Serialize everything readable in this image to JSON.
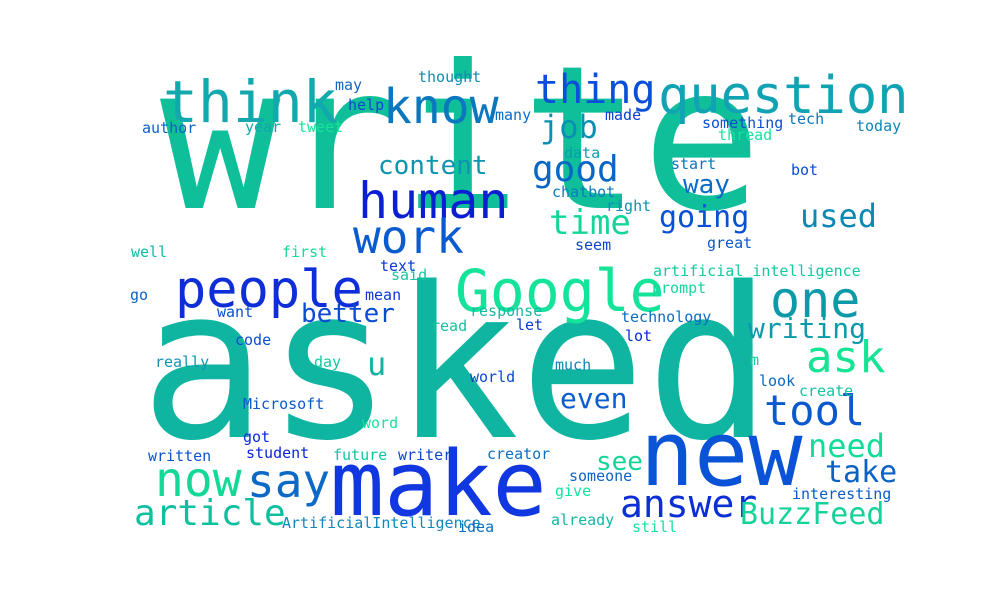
{
  "words": [
    {
      "text": "write",
      "color": "#0fbf9a"
    },
    {
      "text": "asked",
      "color": "#0fb5a0"
    },
    {
      "text": "make",
      "color": "#1037e0"
    },
    {
      "text": "new",
      "color": "#0a52d6"
    },
    {
      "text": "question",
      "color": "#11a3b3"
    },
    {
      "text": "think",
      "color": "#12a8ad"
    },
    {
      "text": "know",
      "color": "#0a77be"
    },
    {
      "text": "Google",
      "color": "#14e39a"
    },
    {
      "text": "people",
      "color": "#0d2ed9"
    },
    {
      "text": "human",
      "color": "#0a1fd3"
    },
    {
      "text": "work",
      "color": "#0a5bd0"
    },
    {
      "text": "one",
      "color": "#0c9aa8"
    },
    {
      "text": "thing",
      "color": "#0a4fd9"
    },
    {
      "text": "tool",
      "color": "#0a59cf"
    },
    {
      "text": "ask",
      "color": "#14e494"
    },
    {
      "text": "now",
      "color": "#14d996"
    },
    {
      "text": "say",
      "color": "#0a6ac6"
    },
    {
      "text": "article",
      "color": "#0fc0a0"
    },
    {
      "text": "answer",
      "color": "#0a2fd5"
    },
    {
      "text": "BuzzFeed",
      "color": "#14d39a"
    },
    {
      "text": "good",
      "color": "#0a66c5"
    },
    {
      "text": "job",
      "color": "#0b8fb2"
    },
    {
      "text": "time",
      "color": "#14d59a"
    },
    {
      "text": "used",
      "color": "#0d87b4"
    },
    {
      "text": "going",
      "color": "#0a50d2"
    },
    {
      "text": "content",
      "color": "#0c94b0"
    },
    {
      "text": "way",
      "color": "#0a6cc6"
    },
    {
      "text": "writing",
      "color": "#0a9aab"
    },
    {
      "text": "better",
      "color": "#0a4cd1"
    },
    {
      "text": "need",
      "color": "#14dc98"
    },
    {
      "text": "take",
      "color": "#0a62c5"
    },
    {
      "text": "see",
      "color": "#14d49a"
    },
    {
      "text": "even",
      "color": "#0a5ccf"
    },
    {
      "text": "u",
      "color": "#12b3a3"
    },
    {
      "text": "artificial intelligence",
      "color": "#13c9a0"
    },
    {
      "text": "technology",
      "color": "#0b6bc4"
    },
    {
      "text": "prompt",
      "color": "#14d69c"
    },
    {
      "text": "may",
      "color": "#1268c4"
    },
    {
      "text": "thought",
      "color": "#1389b6"
    },
    {
      "text": "help",
      "color": "#0c47cf"
    },
    {
      "text": "many",
      "color": "#0a6dc5"
    },
    {
      "text": "made",
      "color": "#0a3fd1"
    },
    {
      "text": "something",
      "color": "#0d4ed0"
    },
    {
      "text": "tech",
      "color": "#0b76bf"
    },
    {
      "text": "today",
      "color": "#0b86b6"
    },
    {
      "text": "author",
      "color": "#0b62c7"
    },
    {
      "text": "year",
      "color": "#12a7ab"
    },
    {
      "text": "tweet",
      "color": "#14e596"
    },
    {
      "text": "thread",
      "color": "#14e49b"
    },
    {
      "text": "data",
      "color": "#0c9cac"
    },
    {
      "text": "start",
      "color": "#0c74be"
    },
    {
      "text": "bot",
      "color": "#0b4ed2"
    },
    {
      "text": "chatbot",
      "color": "#0c7bbf"
    },
    {
      "text": "right",
      "color": "#0d91b1"
    },
    {
      "text": "seem",
      "color": "#0c46cf"
    },
    {
      "text": "great",
      "color": "#0b58cc"
    },
    {
      "text": "well",
      "color": "#14b9a2"
    },
    {
      "text": "first",
      "color": "#14dc9a"
    },
    {
      "text": "text",
      "color": "#0a37d5"
    },
    {
      "text": "said",
      "color": "#14c7a0"
    },
    {
      "text": "go",
      "color": "#0c61c6"
    },
    {
      "text": "want",
      "color": "#0a4fd0"
    },
    {
      "text": "mean",
      "color": "#0a3bd4"
    },
    {
      "text": "response",
      "color": "#14b8a4"
    },
    {
      "text": "let",
      "color": "#0a3ad3"
    },
    {
      "text": "read",
      "color": "#12c2a0"
    },
    {
      "text": "lot",
      "color": "#0a2bd8"
    },
    {
      "text": "code",
      "color": "#0a4dd1"
    },
    {
      "text": "really",
      "color": "#0d95af"
    },
    {
      "text": "day",
      "color": "#12c9a0"
    },
    {
      "text": "much",
      "color": "#0c87b5"
    },
    {
      "text": "world",
      "color": "#0b47d0"
    },
    {
      "text": "m",
      "color": "#14cda0"
    },
    {
      "text": "look",
      "color": "#0c66c4"
    },
    {
      "text": "create",
      "color": "#14c49f"
    },
    {
      "text": "Microsoft",
      "color": "#0a5bcd"
    },
    {
      "text": "word",
      "color": "#14e59a"
    },
    {
      "text": "got",
      "color": "#0a2ad8"
    },
    {
      "text": "written",
      "color": "#0a55cd"
    },
    {
      "text": "student",
      "color": "#0a24d8"
    },
    {
      "text": "future",
      "color": "#12c3a1"
    },
    {
      "text": "writer",
      "color": "#0a47d3"
    },
    {
      "text": "creator",
      "color": "#0b70c3"
    },
    {
      "text": "someone",
      "color": "#0c64c6"
    },
    {
      "text": "interesting",
      "color": "#0a5ccd"
    },
    {
      "text": "give",
      "color": "#14e19a"
    },
    {
      "text": "already",
      "color": "#12b6a4"
    },
    {
      "text": "ArtificialIntelligence",
      "color": "#1188ba"
    },
    {
      "text": "idea",
      "color": "#0b6fc1"
    },
    {
      "text": "still",
      "color": "#14e49c"
    }
  ]
}
